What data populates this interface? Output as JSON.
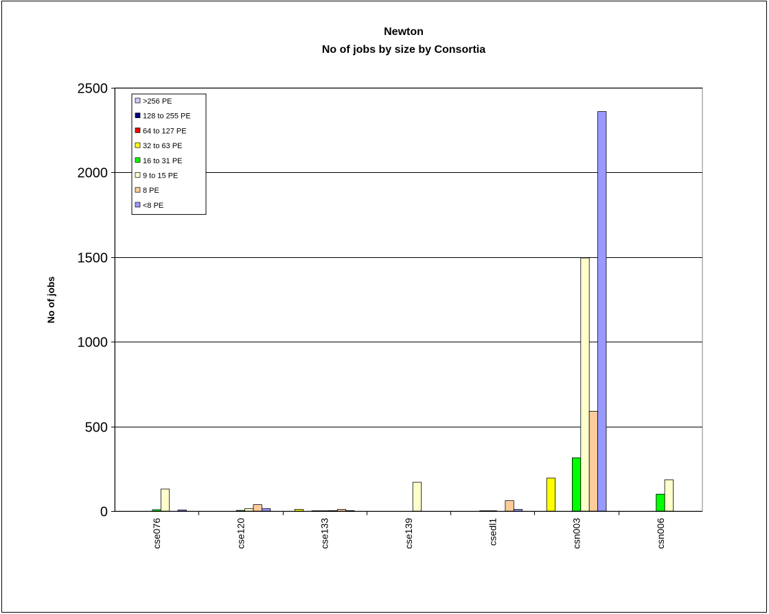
{
  "chart_data": {
    "type": "bar",
    "title": "Newton",
    "subtitle": "No of jobs by size by Consortia",
    "xlabel": "",
    "ylabel": "No of jobs",
    "ylim": [
      0,
      2500
    ],
    "yticks": [
      0,
      500,
      1000,
      1500,
      2000,
      2500
    ],
    "grid": true,
    "legend_position": "top-left",
    "categories": [
      "cse076",
      "cse120",
      "cse133",
      "cse139",
      "csedl1",
      "csn003",
      "csn006"
    ],
    "series": [
      {
        "name": "32 to 63 PE",
        "color": "#ffff00",
        "values": [
          0,
          0,
          10,
          0,
          0,
          195,
          0
        ]
      },
      {
        "name": "64 to 127 PE",
        "color": "#ff0000",
        "values": [
          0,
          0,
          0,
          0,
          0,
          0,
          0
        ]
      },
      {
        "name": "128 to 255 PE",
        "color": "#000080",
        "values": [
          0,
          0,
          2,
          0,
          2,
          0,
          0
        ]
      },
      {
        "name": "16 to 31 PE",
        "color": "#00ff00",
        "values": [
          8,
          4,
          2,
          0,
          2,
          315,
          100
        ]
      },
      {
        "name": "9 to 15 PE",
        "color": "#ffffcc",
        "values": [
          130,
          15,
          3,
          170,
          0,
          1495,
          185
        ]
      },
      {
        "name": "8 PE",
        "color": "#ffcc99",
        "values": [
          0,
          38,
          10,
          0,
          62,
          590,
          0
        ]
      },
      {
        "name": "<8 PE",
        "color": "#9999ff",
        "values": [
          7,
          15,
          3,
          0,
          10,
          2360,
          0
        ]
      }
    ],
    "legend_order": [
      {
        "name": ">256 PE",
        "color": "#ccccff"
      },
      {
        "name": "128 to 255 PE",
        "color": "#000080"
      },
      {
        "name": "64 to 127 PE",
        "color": "#ff0000"
      },
      {
        "name": "32 to 63 PE",
        "color": "#ffff00"
      },
      {
        "name": "16 to 31 PE",
        "color": "#00ff00"
      },
      {
        "name": "9 to 15 PE",
        "color": "#ffffcc"
      },
      {
        "name": "8 PE",
        "color": "#ffcc99"
      },
      {
        "name": "<8 PE",
        "color": "#9999ff"
      }
    ]
  }
}
